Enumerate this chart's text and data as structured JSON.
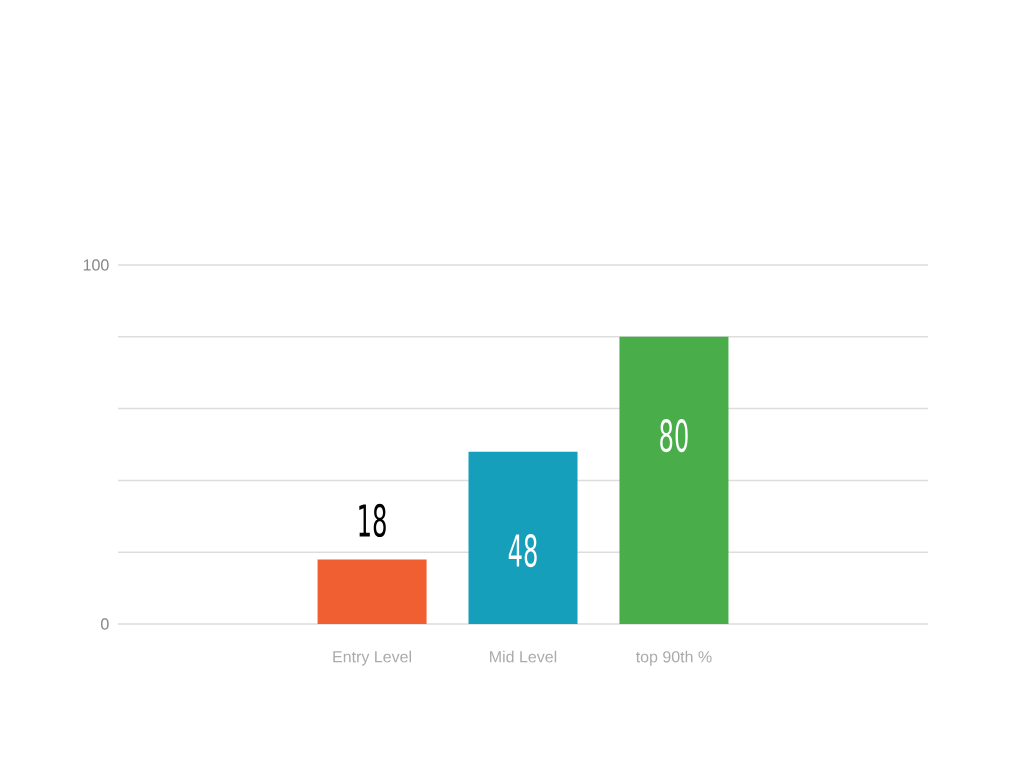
{
  "chart_data": {
    "type": "bar",
    "categories": [
      "Entry Level",
      "Mid Level",
      "top 90th %"
    ],
    "values": [
      18,
      48,
      80
    ],
    "colors": [
      "#f05f32",
      "#159fbb",
      "#49ad4a"
    ],
    "ylim": [
      0,
      100
    ],
    "yticks": [
      0,
      {
        "value": 20,
        "label": null
      },
      {
        "value": 40,
        "label": null
      },
      {
        "value": 60,
        "label": null
      },
      {
        "value": 80,
        "label": null
      },
      100
    ],
    "grid": "y",
    "data_labels": true
  }
}
